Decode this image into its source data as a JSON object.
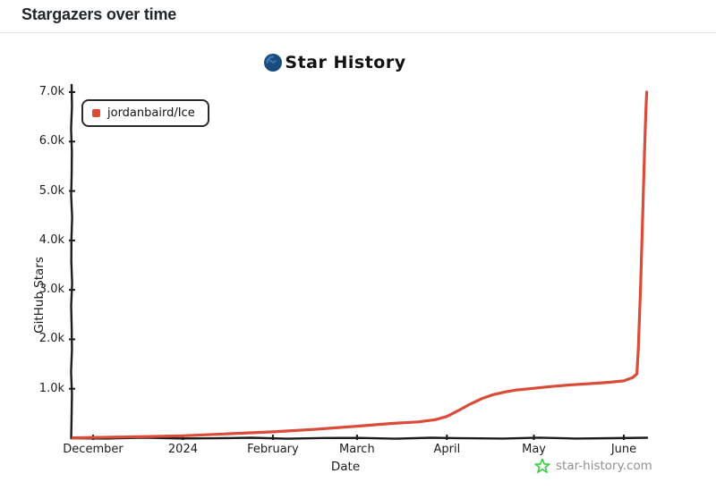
{
  "page": {
    "title": "Stargazers over time"
  },
  "chart": {
    "header_title": "Star History",
    "watermark_text": "star-history.com"
  },
  "colors": {
    "series_red": "#db4c38",
    "logo_blue": "#1b4a7c",
    "logo_blue_light": "#3d7ab5",
    "watermark_green": "#3ecf49",
    "watermark_gray": "#8f8f8f",
    "axis_black": "#1c1c1c"
  },
  "chart_data": {
    "type": "line",
    "title": "Star History",
    "xlabel": "Date",
    "ylabel": "GitHub Stars",
    "legend_position": "top-left",
    "grid": false,
    "ylim": [
      0,
      7000
    ],
    "x_unit": "days since 2023-12-01",
    "x_ticks": [
      {
        "label": "December",
        "day": 0
      },
      {
        "label": "2024",
        "day": 31
      },
      {
        "label": "February",
        "day": 62
      },
      {
        "label": "March",
        "day": 91
      },
      {
        "label": "April",
        "day": 122
      },
      {
        "label": "May",
        "day": 152
      },
      {
        "label": "June",
        "day": 183
      }
    ],
    "y_ticks": [
      {
        "label": "7.0k",
        "value": 7000
      },
      {
        "label": "6.0k",
        "value": 6000
      },
      {
        "label": "5.0k",
        "value": 5000
      },
      {
        "label": "4.0k",
        "value": 4000
      },
      {
        "label": "3.0k",
        "value": 3000
      },
      {
        "label": "2.0k",
        "value": 2000
      },
      {
        "label": "1.0k",
        "value": 1000
      }
    ],
    "series": [
      {
        "name": "jordanbaird/Ice",
        "color": "#db4c38",
        "points": [
          [
            -7,
            8
          ],
          [
            0,
            15
          ],
          [
            10,
            24
          ],
          [
            20,
            34
          ],
          [
            31,
            48
          ],
          [
            45,
            85
          ],
          [
            62,
            128
          ],
          [
            76,
            178
          ],
          [
            91,
            242
          ],
          [
            103,
            298
          ],
          [
            112,
            330
          ],
          [
            118,
            375
          ],
          [
            122,
            440
          ],
          [
            126,
            560
          ],
          [
            130,
            690
          ],
          [
            134,
            800
          ],
          [
            138,
            880
          ],
          [
            142,
            935
          ],
          [
            146,
            975
          ],
          [
            152,
            1010
          ],
          [
            158,
            1045
          ],
          [
            165,
            1080
          ],
          [
            172,
            1105
          ],
          [
            178,
            1130
          ],
          [
            183,
            1160
          ],
          [
            186,
            1225
          ],
          [
            187.5,
            1300
          ],
          [
            188,
            1800
          ],
          [
            188.8,
            3100
          ],
          [
            189.6,
            4700
          ],
          [
            190.2,
            5900
          ],
          [
            190.6,
            6600
          ],
          [
            190.9,
            7000
          ]
        ]
      }
    ]
  }
}
